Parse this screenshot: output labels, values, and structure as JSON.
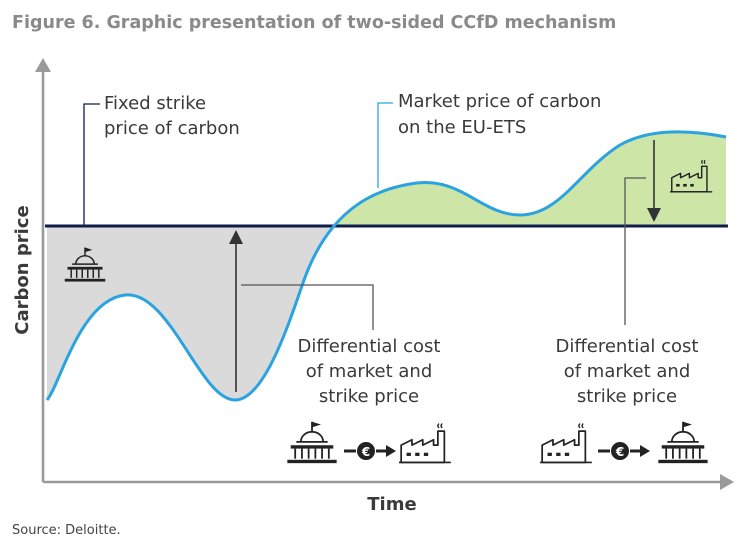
{
  "title": "Figure 6. Graphic presentation of two-sided CCfD mechanism",
  "source": "Source: Deloitte.",
  "axes": {
    "y_label": "Carbon price",
    "x_label": "Time"
  },
  "labels": {
    "strike_line1": "Fixed strike",
    "strike_line2": "price of carbon",
    "market_line1": "Market price of carbon",
    "market_line2": "on the EU-ETS",
    "diff_left_line1": "Differential cost",
    "diff_left_line2": "of market and",
    "diff_left_line3": "strike price",
    "diff_right_line1": "Differential cost",
    "diff_right_line2": "of market and",
    "diff_right_line3": "strike price"
  },
  "icons": {
    "government": "government-building-icon",
    "factory": "factory-icon",
    "euro": "euro-coin-icon"
  },
  "colors": {
    "strike_line": "#0f1e4a",
    "market_curve": "#2aa3e0",
    "gov_pays_area": "#dadada",
    "industry_pays_area": "#cde6a8",
    "axis": "#9a9a9a",
    "title": "#8a8a8a"
  }
}
